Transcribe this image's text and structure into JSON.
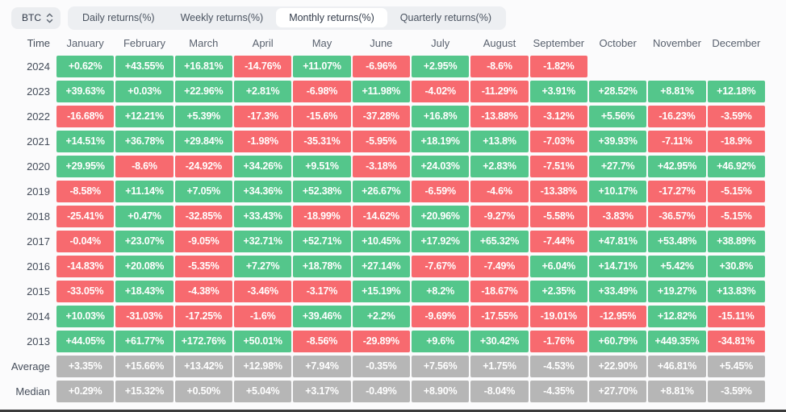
{
  "toolbar": {
    "symbol": "BTC",
    "symbol_selector_icon": "up-down-chevrons-icon",
    "tabs": [
      {
        "label": "Daily returns(%)",
        "active": false
      },
      {
        "label": "Weekly returns(%)",
        "active": false
      },
      {
        "label": "Monthly returns(%)",
        "active": true
      },
      {
        "label": "Quarterly returns(%)",
        "active": false
      }
    ]
  },
  "table": {
    "corner_header": "Time",
    "columns": [
      "January",
      "February",
      "March",
      "April",
      "May",
      "June",
      "July",
      "August",
      "September",
      "October",
      "November",
      "December"
    ],
    "rows": [
      {
        "label": "2024",
        "type": "year",
        "values": [
          "+0.62%",
          "+43.55%",
          "+16.81%",
          "-14.76%",
          "+11.07%",
          "-6.96%",
          "+2.95%",
          "-8.6%",
          "-1.82%",
          null,
          null,
          null
        ]
      },
      {
        "label": "2023",
        "type": "year",
        "values": [
          "+39.63%",
          "+0.03%",
          "+22.96%",
          "+2.81%",
          "-6.98%",
          "+11.98%",
          "-4.02%",
          "-11.29%",
          "+3.91%",
          "+28.52%",
          "+8.81%",
          "+12.18%"
        ]
      },
      {
        "label": "2022",
        "type": "year",
        "values": [
          "-16.68%",
          "+12.21%",
          "+5.39%",
          "-17.3%",
          "-15.6%",
          "-37.28%",
          "+16.8%",
          "-13.88%",
          "-3.12%",
          "+5.56%",
          "-16.23%",
          "-3.59%"
        ]
      },
      {
        "label": "2021",
        "type": "year",
        "values": [
          "+14.51%",
          "+36.78%",
          "+29.84%",
          "-1.98%",
          "-35.31%",
          "-5.95%",
          "+18.19%",
          "+13.8%",
          "-7.03%",
          "+39.93%",
          "-7.11%",
          "-18.9%"
        ]
      },
      {
        "label": "2020",
        "type": "year",
        "values": [
          "+29.95%",
          "-8.6%",
          "-24.92%",
          "+34.26%",
          "+9.51%",
          "-3.18%",
          "+24.03%",
          "+2.83%",
          "-7.51%",
          "+27.7%",
          "+42.95%",
          "+46.92%"
        ]
      },
      {
        "label": "2019",
        "type": "year",
        "values": [
          "-8.58%",
          "+11.14%",
          "+7.05%",
          "+34.36%",
          "+52.38%",
          "+26.67%",
          "-6.59%",
          "-4.6%",
          "-13.38%",
          "+10.17%",
          "-17.27%",
          "-5.15%"
        ]
      },
      {
        "label": "2018",
        "type": "year",
        "values": [
          "-25.41%",
          "+0.47%",
          "-32.85%",
          "+33.43%",
          "-18.99%",
          "-14.62%",
          "+20.96%",
          "-9.27%",
          "-5.58%",
          "-3.83%",
          "-36.57%",
          "-5.15%"
        ]
      },
      {
        "label": "2017",
        "type": "year",
        "values": [
          "-0.04%",
          "+23.07%",
          "-9.05%",
          "+32.71%",
          "+52.71%",
          "+10.45%",
          "+17.92%",
          "+65.32%",
          "-7.44%",
          "+47.81%",
          "+53.48%",
          "+38.89%"
        ]
      },
      {
        "label": "2016",
        "type": "year",
        "values": [
          "-14.83%",
          "+20.08%",
          "-5.35%",
          "+7.27%",
          "+18.78%",
          "+27.14%",
          "-7.67%",
          "-7.49%",
          "+6.04%",
          "+14.71%",
          "+5.42%",
          "+30.8%"
        ]
      },
      {
        "label": "2015",
        "type": "year",
        "values": [
          "-33.05%",
          "+18.43%",
          "-4.38%",
          "-3.46%",
          "-3.17%",
          "+15.19%",
          "+8.2%",
          "-18.67%",
          "+2.35%",
          "+33.49%",
          "+19.27%",
          "+13.83%"
        ]
      },
      {
        "label": "2014",
        "type": "year",
        "values": [
          "+10.03%",
          "-31.03%",
          "-17.25%",
          "-1.6%",
          "+39.46%",
          "+2.2%",
          "-9.69%",
          "-17.55%",
          "-19.01%",
          "-12.95%",
          "+12.82%",
          "-15.11%"
        ]
      },
      {
        "label": "2013",
        "type": "year",
        "values": [
          "+44.05%",
          "+61.77%",
          "+172.76%",
          "+50.01%",
          "-8.56%",
          "-29.89%",
          "+9.6%",
          "+30.42%",
          "-1.76%",
          "+60.79%",
          "+449.35%",
          "-34.81%"
        ]
      },
      {
        "label": "Average",
        "type": "summary",
        "values": [
          "+3.35%",
          "+15.66%",
          "+13.42%",
          "+12.98%",
          "+7.94%",
          "-0.35%",
          "+7.56%",
          "+1.75%",
          "-4.53%",
          "+22.90%",
          "+46.81%",
          "+5.45%"
        ]
      },
      {
        "label": "Median",
        "type": "summary",
        "values": [
          "+0.29%",
          "+15.32%",
          "+0.50%",
          "+5.04%",
          "+3.17%",
          "-0.49%",
          "+8.90%",
          "-8.04%",
          "-4.35%",
          "+27.70%",
          "+8.81%",
          "-3.59%"
        ]
      }
    ]
  },
  "colors": {
    "positive": "#54c68b",
    "negative": "#f76a6f",
    "summary": "#b6b6b6"
  }
}
